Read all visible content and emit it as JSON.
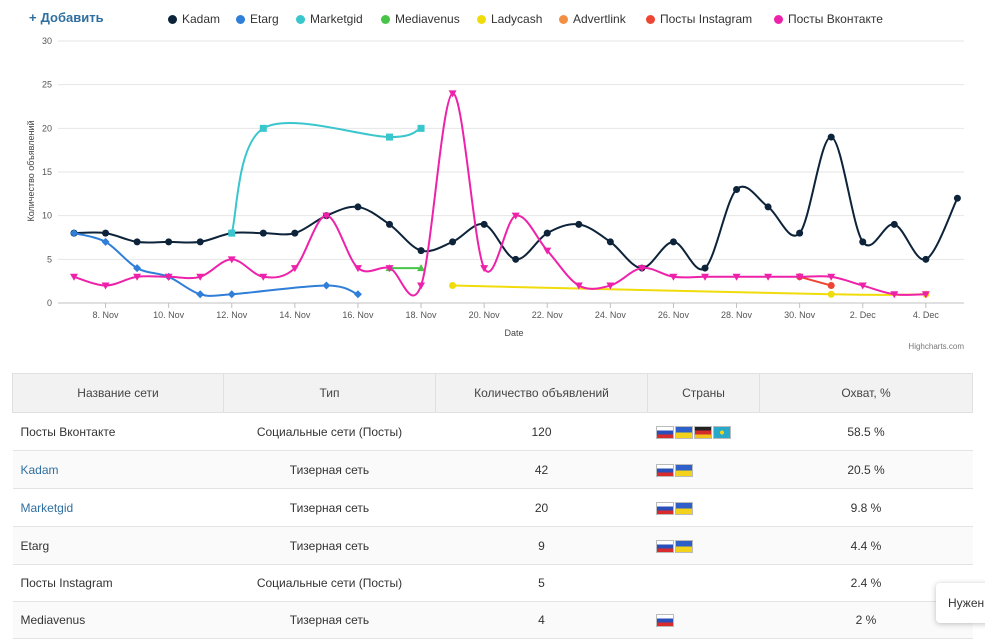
{
  "toolbar": {
    "add_label": "Добавить",
    "add_icon": "plus-icon"
  },
  "legend": [
    {
      "label": "Kadam",
      "color": "#0d233a"
    },
    {
      "label": "Etarg",
      "color": "#2f7ed8"
    },
    {
      "label": "Marketgid",
      "color": "#3ac6cd"
    },
    {
      "label": "Mediavenus",
      "color": "#48c448"
    },
    {
      "label": "Ladycash",
      "color": "#f0dc0a"
    },
    {
      "label": "Advertlink",
      "color": "#f28f43"
    },
    {
      "label": "Посты Instagram",
      "color": "#ee4433"
    },
    {
      "label": "Посты Вконтакте",
      "color": "#ee22aa"
    }
  ],
  "chart_data": {
    "type": "line",
    "xlabel": "Date",
    "ylabel": "Количество объявлений",
    "ylim": [
      0,
      30
    ],
    "yticks": [
      0,
      5,
      10,
      15,
      20,
      25,
      30
    ],
    "x_ticks": [
      "8. Nov",
      "10. Nov",
      "12. Nov",
      "14. Nov",
      "16. Nov",
      "18. Nov",
      "20. Nov",
      "22. Nov",
      "24. Nov",
      "26. Nov",
      "28. Nov",
      "30. Nov",
      "2. Dec",
      "4. Dec"
    ],
    "x_days": [
      8,
      10,
      12,
      14,
      16,
      18,
      20,
      22,
      24,
      26,
      28,
      30,
      32,
      34
    ],
    "grid": true,
    "credits": "Highcharts.com",
    "series": [
      {
        "name": "Kadam",
        "color": "#0d233a",
        "marker": "circle",
        "x": [
          7,
          8,
          9,
          10,
          11,
          12,
          13,
          14,
          15,
          16,
          17,
          18,
          19,
          20,
          21,
          22,
          23,
          24,
          25,
          26,
          27,
          28,
          29,
          30,
          31,
          32,
          33,
          34,
          35
        ],
        "y": [
          8,
          8,
          7,
          7,
          7,
          8,
          8,
          8,
          10,
          11,
          9,
          6,
          7,
          9,
          5,
          8,
          9,
          7,
          4,
          7,
          4,
          13,
          11,
          8,
          19,
          7,
          9,
          5,
          12
        ]
      },
      {
        "name": "Etarg",
        "color": "#2f7ed8",
        "marker": "diamond",
        "x": [
          7,
          8,
          9,
          10,
          11,
          12,
          15,
          16
        ],
        "y": [
          8,
          7,
          4,
          3,
          1,
          1,
          2,
          1
        ]
      },
      {
        "name": "Marketgid",
        "color": "#3ac6cd",
        "marker": "square",
        "x": [
          12,
          13,
          17,
          18
        ],
        "y": [
          8,
          20,
          19,
          20
        ]
      },
      {
        "name": "Mediavenus",
        "color": "#48c448",
        "marker": "triangle",
        "x": [
          17,
          18
        ],
        "y": [
          4,
          4
        ]
      },
      {
        "name": "Ladycash",
        "color": "#f0dc0a",
        "marker": "circle",
        "x": [
          19,
          31,
          34
        ],
        "y": [
          2,
          1,
          1
        ]
      },
      {
        "name": "Посты Instagram",
        "color": "#ee4433",
        "marker": "circle",
        "x": [
          30,
          31
        ],
        "y": [
          3,
          2
        ]
      },
      {
        "name": "Посты Вконтакте",
        "color": "#ee22aa",
        "marker": "triangle-down",
        "x": [
          7,
          8,
          9,
          10,
          11,
          12,
          13,
          14,
          15,
          16,
          17,
          18,
          19,
          20,
          21,
          22,
          23,
          24,
          25,
          26,
          27,
          28,
          29,
          30,
          31,
          32,
          33,
          34
        ],
        "y": [
          3,
          2,
          3,
          3,
          3,
          5,
          3,
          4,
          10,
          4,
          4,
          2,
          24,
          4,
          10,
          6,
          2,
          2,
          4,
          3,
          3,
          3,
          3,
          3,
          3,
          2,
          1,
          1
        ]
      }
    ]
  },
  "table": {
    "headers": [
      "Название сети",
      "Тип",
      "Количество объявлений",
      "Страны",
      "Охват, %"
    ],
    "rows": [
      {
        "name": "Посты Вконтакте",
        "type": "Социальные сети (Посты)",
        "count": "120",
        "coverage": "58.5 %"
      },
      {
        "name": "Kadam",
        "type": "Тизерная сеть",
        "count": "42",
        "coverage": "20.5 %"
      },
      {
        "name": "Marketgid",
        "type": "Тизерная сеть",
        "count": "20",
        "coverage": "9.8 %"
      },
      {
        "name": "Etarg",
        "type": "Тизерная сеть",
        "count": "9",
        "coverage": "4.4 %"
      },
      {
        "name": "Посты Instagram",
        "type": "Социальные сети (Посты)",
        "count": "5",
        "coverage": "2.4 %"
      },
      {
        "name": "Mediavenus",
        "type": "Тизерная сеть",
        "count": "4",
        "coverage": "2 %"
      }
    ]
  },
  "help": {
    "label": "Нужен"
  }
}
